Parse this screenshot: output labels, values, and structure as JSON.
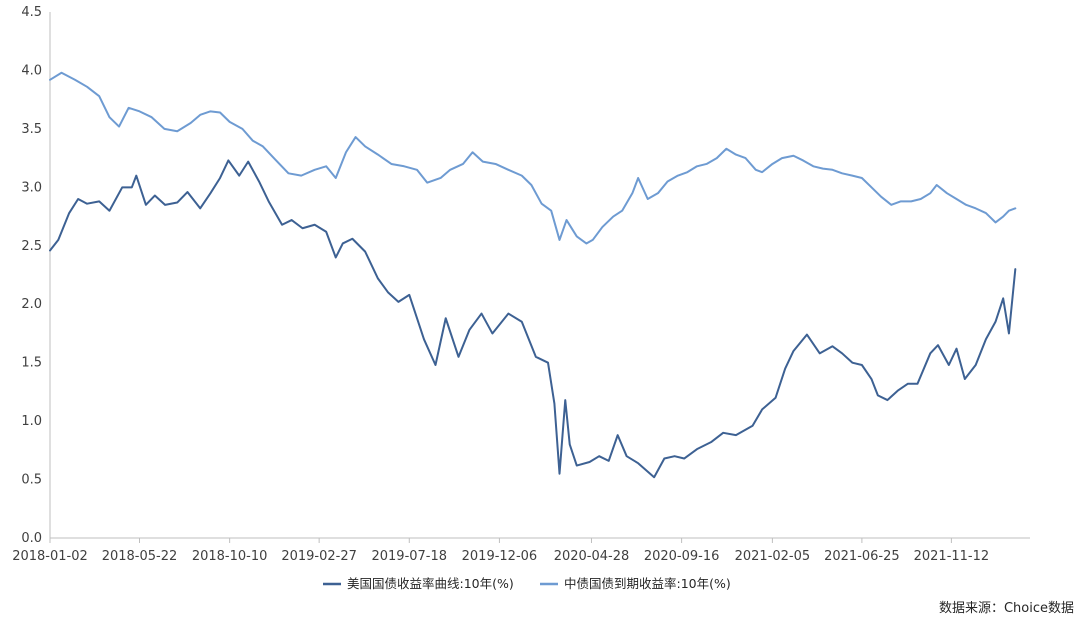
{
  "source": "数据来源：Choice数据",
  "colors": {
    "us_series": "#3d6193",
    "cn_series": "#6e9bd2",
    "axis": "#bfbfbf",
    "text": "#404040"
  },
  "chart_data": {
    "type": "line",
    "title": "",
    "xlabel": "",
    "ylabel": "",
    "ylim": [
      0,
      4.5
    ],
    "y_ticks": [
      "0.0",
      "0.5",
      "1.0",
      "1.5",
      "2.0",
      "2.5",
      "3.0",
      "3.5",
      "4.0",
      "4.5"
    ],
    "x_range": [
      "2018-01-02",
      "2022-02-10"
    ],
    "x_ticks": [
      "2018-01-02",
      "2018-05-22",
      "2018-10-10",
      "2019-02-27",
      "2019-07-18",
      "2019-12-06",
      "2020-04-28",
      "2020-09-16",
      "2021-02-05",
      "2021-06-25",
      "2021-11-12"
    ],
    "grid": false,
    "legend_position": "bottom",
    "series": [
      {
        "name": "美国国债收益率曲线:10年(%)",
        "color": "#3d6193",
        "points": [
          [
            "2018-01-02",
            2.46
          ],
          [
            "2018-01-15",
            2.55
          ],
          [
            "2018-02-01",
            2.78
          ],
          [
            "2018-02-15",
            2.9
          ],
          [
            "2018-03-01",
            2.86
          ],
          [
            "2018-03-20",
            2.88
          ],
          [
            "2018-04-05",
            2.8
          ],
          [
            "2018-04-25",
            3.0
          ],
          [
            "2018-05-10",
            3.0
          ],
          [
            "2018-05-17",
            3.1
          ],
          [
            "2018-06-01",
            2.85
          ],
          [
            "2018-06-15",
            2.93
          ],
          [
            "2018-07-01",
            2.85
          ],
          [
            "2018-07-20",
            2.87
          ],
          [
            "2018-08-05",
            2.96
          ],
          [
            "2018-08-25",
            2.82
          ],
          [
            "2018-09-10",
            2.95
          ],
          [
            "2018-09-25",
            3.08
          ],
          [
            "2018-10-08",
            3.23
          ],
          [
            "2018-10-25",
            3.1
          ],
          [
            "2018-11-08",
            3.22
          ],
          [
            "2018-11-25",
            3.05
          ],
          [
            "2018-12-10",
            2.88
          ],
          [
            "2018-12-31",
            2.68
          ],
          [
            "2019-01-15",
            2.72
          ],
          [
            "2019-02-01",
            2.65
          ],
          [
            "2019-02-20",
            2.68
          ],
          [
            "2019-03-10",
            2.62
          ],
          [
            "2019-03-25",
            2.4
          ],
          [
            "2019-04-05",
            2.52
          ],
          [
            "2019-04-20",
            2.56
          ],
          [
            "2019-05-10",
            2.45
          ],
          [
            "2019-05-30",
            2.22
          ],
          [
            "2019-06-15",
            2.1
          ],
          [
            "2019-07-01",
            2.02
          ],
          [
            "2019-07-18",
            2.08
          ],
          [
            "2019-08-10",
            1.7
          ],
          [
            "2019-08-28",
            1.48
          ],
          [
            "2019-09-13",
            1.88
          ],
          [
            "2019-10-03",
            1.55
          ],
          [
            "2019-10-20",
            1.78
          ],
          [
            "2019-11-08",
            1.92
          ],
          [
            "2019-11-25",
            1.75
          ],
          [
            "2019-12-20",
            1.92
          ],
          [
            "2020-01-10",
            1.85
          ],
          [
            "2020-02-01",
            1.55
          ],
          [
            "2020-02-20",
            1.5
          ],
          [
            "2020-03-01",
            1.15
          ],
          [
            "2020-03-09",
            0.55
          ],
          [
            "2020-03-18",
            1.18
          ],
          [
            "2020-03-25",
            0.8
          ],
          [
            "2020-04-05",
            0.62
          ],
          [
            "2020-04-25",
            0.65
          ],
          [
            "2020-05-10",
            0.7
          ],
          [
            "2020-05-25",
            0.66
          ],
          [
            "2020-06-08",
            0.88
          ],
          [
            "2020-06-22",
            0.7
          ],
          [
            "2020-07-10",
            0.64
          ],
          [
            "2020-08-04",
            0.52
          ],
          [
            "2020-08-20",
            0.68
          ],
          [
            "2020-09-05",
            0.7
          ],
          [
            "2020-09-20",
            0.68
          ],
          [
            "2020-10-10",
            0.76
          ],
          [
            "2020-11-01",
            0.82
          ],
          [
            "2020-11-20",
            0.9
          ],
          [
            "2020-12-10",
            0.88
          ],
          [
            "2021-01-05",
            0.96
          ],
          [
            "2021-01-20",
            1.1
          ],
          [
            "2021-02-10",
            1.2
          ],
          [
            "2021-02-25",
            1.45
          ],
          [
            "2021-03-10",
            1.6
          ],
          [
            "2021-03-31",
            1.74
          ],
          [
            "2021-04-20",
            1.58
          ],
          [
            "2021-05-10",
            1.64
          ],
          [
            "2021-05-25",
            1.58
          ],
          [
            "2021-06-10",
            1.5
          ],
          [
            "2021-06-25",
            1.48
          ],
          [
            "2021-07-10",
            1.36
          ],
          [
            "2021-07-20",
            1.22
          ],
          [
            "2021-08-04",
            1.18
          ],
          [
            "2021-08-20",
            1.26
          ],
          [
            "2021-09-05",
            1.32
          ],
          [
            "2021-09-20",
            1.32
          ],
          [
            "2021-10-10",
            1.58
          ],
          [
            "2021-10-22",
            1.65
          ],
          [
            "2021-11-08",
            1.48
          ],
          [
            "2021-11-20",
            1.62
          ],
          [
            "2021-12-03",
            1.36
          ],
          [
            "2021-12-20",
            1.48
          ],
          [
            "2022-01-05",
            1.7
          ],
          [
            "2022-01-20",
            1.85
          ],
          [
            "2022-02-01",
            2.05
          ],
          [
            "2022-02-10",
            1.75
          ],
          [
            "2022-02-20",
            2.3
          ]
        ]
      },
      {
        "name": "中债国债到期收益率:10年(%)",
        "color": "#6e9bd2",
        "points": [
          [
            "2018-01-02",
            3.92
          ],
          [
            "2018-01-20",
            3.98
          ],
          [
            "2018-02-10",
            3.92
          ],
          [
            "2018-03-01",
            3.86
          ],
          [
            "2018-03-20",
            3.78
          ],
          [
            "2018-04-05",
            3.6
          ],
          [
            "2018-04-20",
            3.52
          ],
          [
            "2018-05-05",
            3.68
          ],
          [
            "2018-05-22",
            3.65
          ],
          [
            "2018-06-10",
            3.6
          ],
          [
            "2018-06-30",
            3.5
          ],
          [
            "2018-07-20",
            3.48
          ],
          [
            "2018-08-10",
            3.55
          ],
          [
            "2018-08-25",
            3.62
          ],
          [
            "2018-09-10",
            3.65
          ],
          [
            "2018-09-25",
            3.64
          ],
          [
            "2018-10-10",
            3.56
          ],
          [
            "2018-10-30",
            3.5
          ],
          [
            "2018-11-15",
            3.4
          ],
          [
            "2018-12-01",
            3.35
          ],
          [
            "2018-12-20",
            3.24
          ],
          [
            "2019-01-10",
            3.12
          ],
          [
            "2019-01-30",
            3.1
          ],
          [
            "2019-02-20",
            3.15
          ],
          [
            "2019-03-10",
            3.18
          ],
          [
            "2019-03-25",
            3.08
          ],
          [
            "2019-04-10",
            3.3
          ],
          [
            "2019-04-25",
            3.43
          ],
          [
            "2019-05-10",
            3.35
          ],
          [
            "2019-05-30",
            3.28
          ],
          [
            "2019-06-20",
            3.2
          ],
          [
            "2019-07-10",
            3.18
          ],
          [
            "2019-07-30",
            3.15
          ],
          [
            "2019-08-15",
            3.04
          ],
          [
            "2019-09-05",
            3.08
          ],
          [
            "2019-09-20",
            3.15
          ],
          [
            "2019-10-10",
            3.2
          ],
          [
            "2019-10-25",
            3.3
          ],
          [
            "2019-11-10",
            3.22
          ],
          [
            "2019-11-30",
            3.2
          ],
          [
            "2019-12-20",
            3.15
          ],
          [
            "2020-01-10",
            3.1
          ],
          [
            "2020-01-25",
            3.02
          ],
          [
            "2020-02-10",
            2.86
          ],
          [
            "2020-02-25",
            2.8
          ],
          [
            "2020-03-09",
            2.55
          ],
          [
            "2020-03-20",
            2.72
          ],
          [
            "2020-04-05",
            2.58
          ],
          [
            "2020-04-20",
            2.52
          ],
          [
            "2020-04-30",
            2.55
          ],
          [
            "2020-05-15",
            2.66
          ],
          [
            "2020-06-01",
            2.75
          ],
          [
            "2020-06-15",
            2.8
          ],
          [
            "2020-07-01",
            2.95
          ],
          [
            "2020-07-10",
            3.08
          ],
          [
            "2020-07-25",
            2.9
          ],
          [
            "2020-08-10",
            2.95
          ],
          [
            "2020-08-25",
            3.05
          ],
          [
            "2020-09-10",
            3.1
          ],
          [
            "2020-09-25",
            3.13
          ],
          [
            "2020-10-10",
            3.18
          ],
          [
            "2020-10-25",
            3.2
          ],
          [
            "2020-11-10",
            3.25
          ],
          [
            "2020-11-25",
            3.33
          ],
          [
            "2020-12-10",
            3.28
          ],
          [
            "2020-12-25",
            3.25
          ],
          [
            "2021-01-10",
            3.15
          ],
          [
            "2021-01-20",
            3.13
          ],
          [
            "2021-02-05",
            3.2
          ],
          [
            "2021-02-20",
            3.25
          ],
          [
            "2021-03-10",
            3.27
          ],
          [
            "2021-03-25",
            3.23
          ],
          [
            "2021-04-10",
            3.18
          ],
          [
            "2021-04-25",
            3.16
          ],
          [
            "2021-05-10",
            3.15
          ],
          [
            "2021-05-25",
            3.12
          ],
          [
            "2021-06-10",
            3.1
          ],
          [
            "2021-06-25",
            3.08
          ],
          [
            "2021-07-10",
            3.0
          ],
          [
            "2021-07-25",
            2.92
          ],
          [
            "2021-08-10",
            2.85
          ],
          [
            "2021-08-25",
            2.88
          ],
          [
            "2021-09-10",
            2.88
          ],
          [
            "2021-09-25",
            2.9
          ],
          [
            "2021-10-10",
            2.95
          ],
          [
            "2021-10-20",
            3.02
          ],
          [
            "2021-11-05",
            2.95
          ],
          [
            "2021-11-20",
            2.9
          ],
          [
            "2021-12-05",
            2.85
          ],
          [
            "2021-12-20",
            2.82
          ],
          [
            "2022-01-05",
            2.78
          ],
          [
            "2022-01-20",
            2.7
          ],
          [
            "2022-02-01",
            2.75
          ],
          [
            "2022-02-10",
            2.8
          ],
          [
            "2022-02-20",
            2.82
          ]
        ]
      }
    ]
  }
}
